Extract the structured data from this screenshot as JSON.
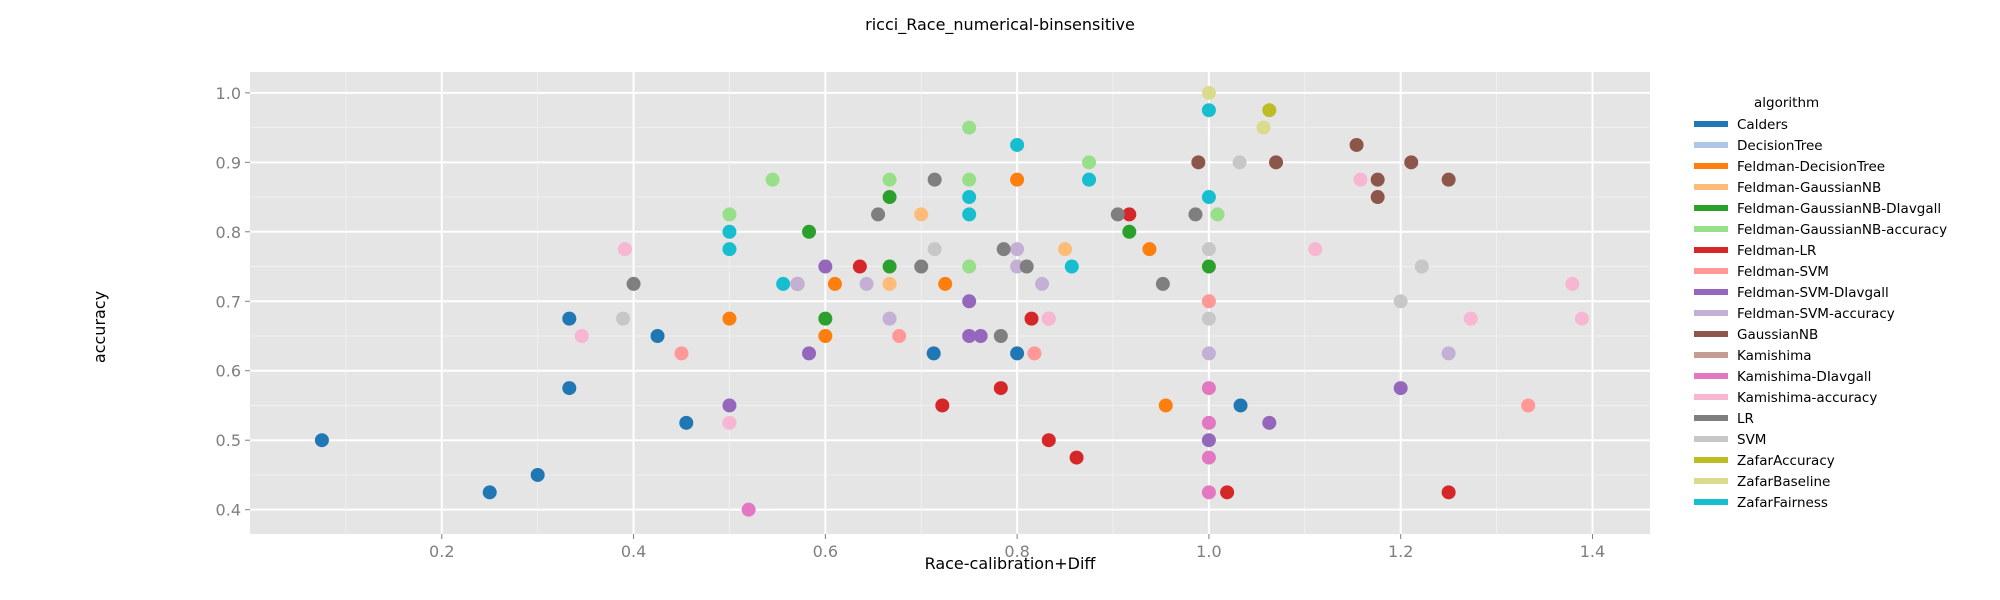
{
  "chart_data": {
    "type": "scatter",
    "title": "ricci_Race_numerical-binsensitive",
    "xlabel": "Race-calibration+Diff",
    "ylabel": "accuracy",
    "xlim": [
      0.0,
      1.46
    ],
    "ylim": [
      0.365,
      1.03
    ],
    "x_ticks": [
      0.2,
      0.4,
      0.6,
      0.8,
      1.0,
      1.2,
      1.4
    ],
    "y_ticks": [
      0.4,
      0.5,
      0.6,
      0.7,
      0.8,
      0.9,
      1.0
    ],
    "x_tick_labels": [
      "0.2",
      "0.4",
      "0.6",
      "0.8",
      "1.0",
      "1.2",
      "1.4"
    ],
    "y_tick_labels": [
      "0.4",
      "0.5",
      "0.6",
      "0.7",
      "0.8",
      "0.9",
      "1.0"
    ],
    "grid": true,
    "legend_title": "algorithm",
    "legend_position": "right",
    "series": [
      {
        "name": "Calders",
        "color": "#1f77b4",
        "x": [
          0.075,
          0.25,
          0.3,
          0.333,
          0.333,
          0.425,
          0.455,
          0.713,
          0.8,
          1.033
        ],
        "y": [
          0.5,
          0.425,
          0.45,
          0.575,
          0.675,
          0.65,
          0.525,
          0.625,
          0.625,
          0.55
        ]
      },
      {
        "name": "DecisionTree",
        "color": "#aec7e8",
        "x": [],
        "y": []
      },
      {
        "name": "Feldman-DecisionTree",
        "color": "#ff7f0e",
        "x": [
          0.5,
          0.6,
          0.61,
          0.725,
          0.8,
          0.938,
          0.955
        ],
        "y": [
          0.675,
          0.65,
          0.725,
          0.725,
          0.875,
          0.775,
          0.55
        ]
      },
      {
        "name": "Feldman-GaussianNB",
        "color": "#ffbb78",
        "x": [
          0.667,
          0.7,
          0.85
        ],
        "y": [
          0.725,
          0.825,
          0.775
        ]
      },
      {
        "name": "Feldman-GaussianNB-DIavgall",
        "color": "#2ca02c",
        "x": [
          0.583,
          0.6,
          0.667,
          0.667,
          0.917,
          1.0
        ],
        "y": [
          0.8,
          0.675,
          0.75,
          0.85,
          0.8,
          0.75
        ]
      },
      {
        "name": "Feldman-GaussianNB-accuracy",
        "color": "#98df8a",
        "x": [
          0.5,
          0.545,
          0.667,
          0.75,
          0.75,
          0.75,
          0.875,
          1.009
        ],
        "y": [
          0.825,
          0.875,
          0.875,
          0.875,
          0.95,
          0.75,
          0.9,
          0.825
        ]
      },
      {
        "name": "Feldman-LR",
        "color": "#d62728",
        "x": [
          0.571,
          0.636,
          0.722,
          0.783,
          0.815,
          0.833,
          0.862,
          0.917,
          1.019,
          1.25
        ],
        "y": [
          0.725,
          0.75,
          0.55,
          0.575,
          0.675,
          0.5,
          0.475,
          0.825,
          0.425,
          0.425
        ]
      },
      {
        "name": "Feldman-SVM",
        "color": "#ff9896",
        "x": [
          0.45,
          0.677,
          0.818,
          0.833,
          1.0,
          1.333
        ],
        "y": [
          0.625,
          0.65,
          0.625,
          0.675,
          0.7,
          0.55
        ]
      },
      {
        "name": "Feldman-SVM-DIavgall",
        "color": "#9467bd",
        "x": [
          0.5,
          0.583,
          0.6,
          0.75,
          0.75,
          0.762,
          1.0,
          1.063,
          1.2
        ],
        "y": [
          0.55,
          0.625,
          0.75,
          0.65,
          0.7,
          0.65,
          0.5,
          0.525,
          0.575
        ]
      },
      {
        "name": "Feldman-SVM-accuracy",
        "color": "#c5b0d5",
        "x": [
          0.571,
          0.643,
          0.667,
          0.8,
          0.8,
          0.826,
          1.0,
          1.25
        ],
        "y": [
          0.725,
          0.725,
          0.675,
          0.75,
          0.775,
          0.725,
          0.625,
          0.625
        ]
      },
      {
        "name": "GaussianNB",
        "color": "#8c564b",
        "x": [
          0.989,
          1.07,
          1.154,
          1.176,
          1.176,
          1.211,
          1.25
        ],
        "y": [
          0.9,
          0.9,
          0.925,
          0.875,
          0.85,
          0.9,
          0.875
        ]
      },
      {
        "name": "Kamishima",
        "color": "#c49c94",
        "x": [],
        "y": []
      },
      {
        "name": "Kamishima-DIavgall",
        "color": "#e377c2",
        "x": [
          0.52,
          1.0,
          1.0,
          1.0,
          1.0
        ],
        "y": [
          0.4,
          0.575,
          0.525,
          0.475,
          0.425
        ]
      },
      {
        "name": "Kamishima-accuracy",
        "color": "#f7b6d2",
        "x": [
          0.346,
          0.391,
          0.5,
          0.833,
          1.111,
          1.158,
          1.273,
          1.379,
          1.389
        ],
        "y": [
          0.65,
          0.775,
          0.525,
          0.675,
          0.775,
          0.875,
          0.675,
          0.725,
          0.675
        ]
      },
      {
        "name": "LR",
        "color": "#7f7f7f",
        "x": [
          0.4,
          0.655,
          0.7,
          0.714,
          0.783,
          0.786,
          0.81,
          0.905,
          0.952,
          0.986
        ],
        "y": [
          0.725,
          0.825,
          0.75,
          0.875,
          0.65,
          0.775,
          0.75,
          0.825,
          0.725,
          0.825
        ]
      },
      {
        "name": "SVM",
        "color": "#c7c7c7",
        "x": [
          0.389,
          0.714,
          1.0,
          1.0,
          1.032,
          1.2,
          1.222
        ],
        "y": [
          0.675,
          0.775,
          0.775,
          0.675,
          0.9,
          0.7,
          0.75
        ]
      },
      {
        "name": "ZafarAccuracy",
        "color": "#bcbd22",
        "x": [
          1.063
        ],
        "y": [
          0.975
        ]
      },
      {
        "name": "ZafarBaseline",
        "color": "#dbdb8d",
        "x": [
          1.0,
          1.057
        ],
        "y": [
          1.0,
          0.95
        ]
      },
      {
        "name": "ZafarFairness",
        "color": "#17becf",
        "x": [
          0.5,
          0.5,
          0.556,
          0.75,
          0.75,
          0.8,
          0.857,
          0.875,
          1.0,
          1.0
        ],
        "y": [
          0.8,
          0.775,
          0.725,
          0.85,
          0.825,
          0.925,
          0.75,
          0.875,
          0.975,
          0.85
        ]
      }
    ]
  }
}
